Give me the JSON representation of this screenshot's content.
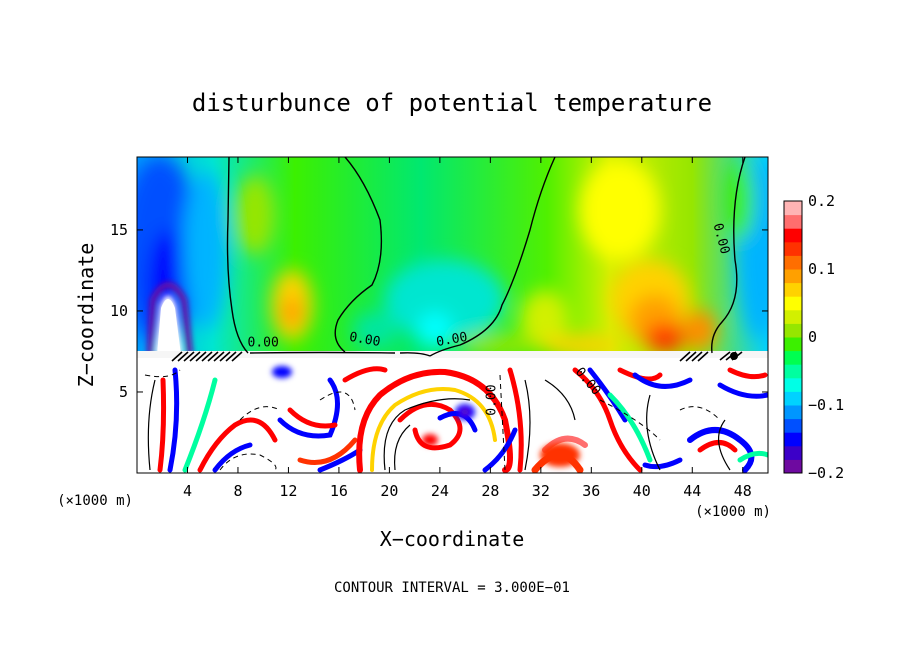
{
  "chart_data": {
    "type": "heatmap",
    "title": "disturbunce of potential temperature",
    "xlabel": "X−coordinate",
    "ylabel": "Z−coordinate",
    "x_unit_left": "(×1000 m)",
    "x_unit_right": "(×1000 m)",
    "footer": "CONTOUR INTERVAL = 3.000E−01",
    "xlim": [
      0,
      50
    ],
    "ylim": [
      0,
      19.5
    ],
    "x_ticks": [
      4,
      8,
      12,
      16,
      20,
      24,
      28,
      32,
      36,
      40,
      44,
      48
    ],
    "y_ticks": [
      5,
      10,
      15
    ],
    "colorbar": {
      "range": [
        -0.2,
        0.2
      ],
      "ticks": [
        {
          "value": 0.2,
          "label": "0.2"
        },
        {
          "value": 0.1,
          "label": "0.1"
        },
        {
          "value": 0,
          "label": "0"
        },
        {
          "value": -0.1,
          "label": "−0.1"
        },
        {
          "value": -0.2,
          "label": "−0.2"
        }
      ],
      "colors": [
        "#6e0aa0",
        "#3c00c8",
        "#0000ff",
        "#0050ff",
        "#0096ff",
        "#00d2ff",
        "#00ffe6",
        "#00ffa0",
        "#00ff50",
        "#3cf000",
        "#96e600",
        "#d2f000",
        "#ffff00",
        "#ffd200",
        "#ffa000",
        "#ff6e00",
        "#ff3200",
        "#ff0000",
        "#ff6e6e",
        "#ffb4b4"
      ]
    },
    "contour_labels": [
      {
        "text": "0.00",
        "x": 10,
        "z": 7.8,
        "rotate": 0
      },
      {
        "text": "0.00",
        "x": 18,
        "z": 8.0,
        "rotate": 10
      },
      {
        "text": "0.00",
        "x": 25,
        "z": 8.0,
        "rotate": -10
      },
      {
        "text": "0.00",
        "x": 46,
        "z": 14.4,
        "rotate": 75
      },
      {
        "text": "0.00",
        "x": 28.4,
        "z": 4.5,
        "rotate": -90
      },
      {
        "text": "0.00",
        "x": 35.5,
        "z": 5.5,
        "rotate": 50
      }
    ]
  }
}
